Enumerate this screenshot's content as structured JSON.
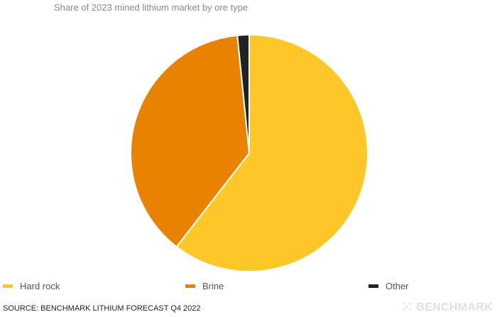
{
  "chart_data": {
    "type": "pie",
    "title": "Share of 2023 mined lithium market by ore type",
    "slices": [
      {
        "label": "Hard rock",
        "value": 60.5,
        "color": "#FDC728"
      },
      {
        "label": "Brine",
        "value": 37.9,
        "color": "#E88200"
      },
      {
        "label": "Other",
        "value": 1.6,
        "color": "#222222"
      }
    ],
    "legend_position": "bottom"
  },
  "footer": {
    "source": "SOURCE: BENCHMARK LITHIUM FORECAST Q4 2022",
    "brand": "BENCHMARK"
  },
  "icons": {
    "brand_mark": "benchmark-logo-icon"
  }
}
